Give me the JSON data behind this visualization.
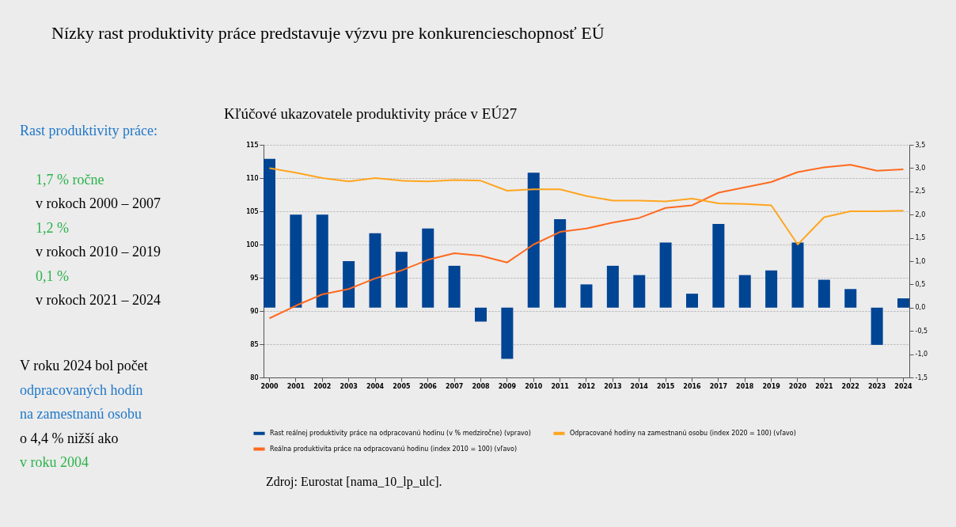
{
  "chart_data": {
    "type": "bar",
    "title": "Nízky rast produktivity práce predstavuje výzvu pre konkurencieschopnosť EÚ",
    "subtitle": "Kľúčové ukazovatele produktivity práce v EÚ27",
    "categories": [
      "2000",
      "2001",
      "2002",
      "2003",
      "2004",
      "2005",
      "2006",
      "2007",
      "2008",
      "2009",
      "2010",
      "2011",
      "2012",
      "2013",
      "2014",
      "2015",
      "2016",
      "2017",
      "2018",
      "2019",
      "2020",
      "2021",
      "2022",
      "2023",
      "2024"
    ],
    "series": [
      {
        "name": "Rast reálnej produktivity práce na odpracovanú hodinu (v % medziročne) (vpravo)",
        "axis": "y2",
        "color": "#004494",
        "values": [
          3.2,
          2.0,
          2.0,
          1.0,
          1.6,
          1.2,
          1.7,
          0.9,
          -0.3,
          -1.1,
          2.9,
          1.9,
          0.5,
          0.9,
          0.7,
          1.4,
          0.3,
          1.8,
          0.7,
          0.8,
          1.4,
          0.6,
          0.4,
          -0.8,
          0.2
        ]
      },
      {
        "name": "Reálna produktivita práce na odpracovanú hodinu (index 2010 = 100) (vľavo)",
        "type": "line",
        "color": "#ff6a1f",
        "values": [
          88.9,
          90.8,
          92.5,
          93.3,
          94.9,
          96.1,
          97.7,
          98.7,
          98.3,
          97.3,
          100.0,
          101.9,
          102.4,
          103.3,
          104.0,
          105.5,
          105.9,
          107.8,
          108.6,
          109.4,
          110.9,
          111.6,
          112.0,
          111.1,
          111.3
        ]
      },
      {
        "name": "Odpracované hodiny na zamestnanú osobu (index 2020 = 100) (vľavo)",
        "type": "line",
        "color": "#ffa51f",
        "values": [
          111.5,
          110.8,
          110.0,
          109.5,
          110.0,
          109.6,
          109.5,
          109.7,
          109.6,
          108.1,
          108.3,
          108.3,
          107.3,
          106.6,
          106.6,
          106.5,
          106.9,
          106.2,
          106.1,
          105.9,
          100.0,
          104.1,
          105.0,
          105.0,
          105.1
        ]
      }
    ],
    "ylim": [
      80,
      115
    ],
    "yticks": [
      80,
      85,
      90,
      95,
      100,
      105,
      110,
      115
    ],
    "y2lim": [
      -1.5,
      3.5
    ],
    "y2ticks": [
      {
        "value": -1.5,
        "label": "-1,5"
      },
      {
        "value": -1.0,
        "label": "-1,0"
      },
      {
        "value": -0.5,
        "label": "-0,5"
      },
      {
        "value": 0,
        "label": "0,0"
      },
      {
        "value": 0.5,
        "label": "0,5"
      },
      {
        "value": 1.0,
        "label": "1,0"
      },
      {
        "value": 1.5,
        "label": "1,5"
      },
      {
        "value": 2.0,
        "label": "2,0"
      },
      {
        "value": 2.5,
        "label": "2,5"
      },
      {
        "value": 3.0,
        "label": "3,0"
      },
      {
        "value": 3.5,
        "label": "3,5"
      }
    ],
    "grid": "y",
    "legend": "bottom",
    "annotations": [
      "Rast produktivity práce:",
      "1,7 % ročne",
      "v rokoch 2000 – 2007",
      "1,2 %",
      "v rokoch 2010 – 2019",
      "0,1 %",
      "v rokoch 2021 – 2024",
      "V roku 2024 bol počet",
      "odpracovaných hodín",
      "na zamestnanú osobu",
      "o 4,4 % nižší ako",
      "v roku 2004",
      "Zdroj: Eurostat [nama_10_lp_ulc]."
    ]
  }
}
